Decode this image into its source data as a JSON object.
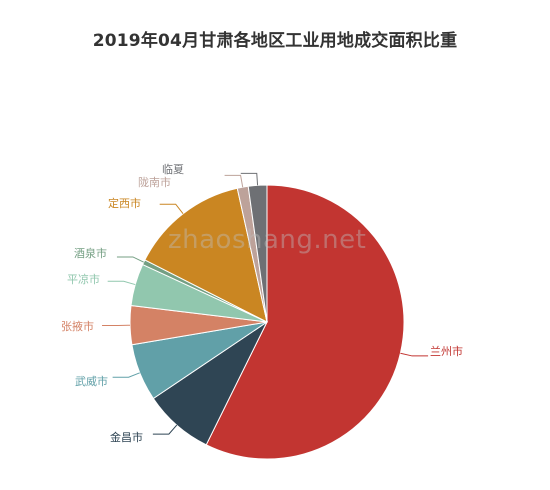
{
  "chart_data": {
    "type": "pie",
    "title": "2019年04月甘肃各地区工业用地成交面积比重",
    "start_angle_deg": 90,
    "direction": "clockwise",
    "slices": [
      {
        "label": "兰州市",
        "value": 57.6,
        "color": "#c23531"
      },
      {
        "label": "金昌市",
        "value": 8.3,
        "color": "#2f4554"
      },
      {
        "label": "武威市",
        "value": 6.8,
        "color": "#61a0a8"
      },
      {
        "label": "张掖市",
        "value": 4.6,
        "color": "#d48265"
      },
      {
        "label": "平凉市",
        "value": 5.0,
        "color": "#91c7ae"
      },
      {
        "label": "酒泉市",
        "value": 0.6,
        "color": "#749f83"
      },
      {
        "label": "定西市",
        "value": 14.1,
        "color": "#ca8622"
      },
      {
        "label": "陇南市",
        "value": 1.3,
        "color": "#bda29a"
      },
      {
        "label": "临夏",
        "value": 2.2,
        "color": "#6e7074"
      }
    ]
  },
  "watermark": "zhaoshang.net"
}
